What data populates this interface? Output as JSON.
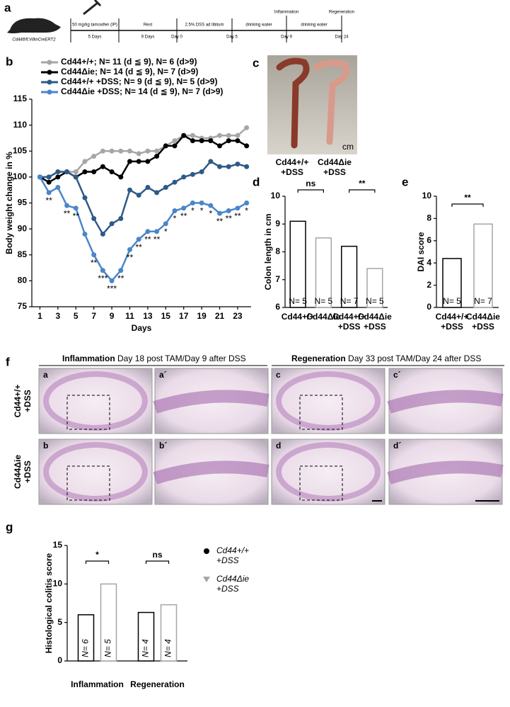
{
  "panel_labels": [
    "a",
    "b",
    "c",
    "d",
    "e",
    "f",
    "g"
  ],
  "timeline": {
    "mouse": "Cd44fl/fl;VillinCreERT2",
    "segments": [
      "50 mg/kg tamoxifen (IP)",
      "Rest",
      "2.5% DSS ad libitum",
      "drinking water",
      "drinking water"
    ],
    "durations": [
      "5 Days",
      "9 Days"
    ],
    "days": [
      "Day 0",
      "Day 5",
      "Day 9",
      "Day 24"
    ],
    "events": [
      "Inflammation",
      "Regeneration"
    ]
  },
  "colon_photo": {
    "scale": "cm",
    "labels": [
      "Cd44+/+\n+DSS",
      "Cd44Δie\n+DSS"
    ]
  },
  "chart_data": [
    {
      "type": "line",
      "x_label": "Days",
      "y_label": "Body weight change in %",
      "x": [
        1,
        2,
        3,
        4,
        5,
        6,
        7,
        8,
        9,
        10,
        11,
        12,
        13,
        14,
        15,
        16,
        17,
        18,
        19,
        20,
        21,
        22,
        23,
        24
      ],
      "xlim": [
        0.1,
        24.5
      ],
      "xticks": [
        1,
        3,
        5,
        7,
        9,
        11,
        13,
        15,
        17,
        19,
        21,
        23
      ],
      "ylim": [
        75,
        115
      ],
      "yticks": [
        75,
        80,
        85,
        90,
        95,
        100,
        105,
        110,
        115
      ],
      "series": [
        {
          "name": "Cd44+/+; N= 11 (d ≦ 9), N= 6 (d>9)",
          "color": "#a6a6a6",
          "values": [
            100,
            100,
            101,
            101,
            101,
            103,
            104,
            105,
            105,
            105,
            105,
            104.5,
            105,
            105,
            106,
            107,
            108,
            108,
            107.5,
            107.5,
            108,
            108,
            108,
            109.5
          ]
        },
        {
          "name": "Cd44Δie; N= 14 (d ≦ 9), N= 7 (d>9)",
          "color": "#000000",
          "values": [
            100,
            99,
            100,
            101,
            100,
            101,
            101,
            102,
            101,
            100,
            103,
            103,
            103,
            104,
            106,
            106,
            108,
            107,
            107,
            107,
            106,
            107,
            107,
            106
          ]
        },
        {
          "name": "Cd44+/+ +DSS; N= 9 (d ≦ 9), N= 5 (d>9)",
          "color": "#2e5a87",
          "values": [
            100,
            100,
            101,
            101,
            100,
            96,
            92,
            89,
            91,
            92,
            97.5,
            96.5,
            98,
            97,
            98,
            99,
            100,
            100.5,
            101,
            103,
            102,
            102,
            102.5,
            102
          ]
        },
        {
          "name": "Cd44Δie +DSS; N= 14 (d ≦ 9), N= 7 (d>9)",
          "color": "#4a86c8",
          "values": [
            100,
            97,
            98,
            94.5,
            94,
            89,
            85,
            82,
            80,
            82,
            86,
            88,
            89.5,
            89.5,
            91,
            93.5,
            94,
            95,
            95,
            94.5,
            93,
            93.5,
            94,
            95
          ]
        }
      ],
      "significance": [
        null,
        "**",
        null,
        "**",
        "**",
        null,
        "**",
        "***",
        "***",
        "**",
        "**",
        "**",
        "**",
        "**",
        "*",
        "*",
        "**",
        "*",
        "*",
        "*",
        "**",
        "**",
        "**",
        "*"
      ]
    },
    {
      "type": "bar",
      "y_label": "Colon length in cm",
      "categories": [
        "Cd44+/+",
        "Cd44Δie",
        "Cd44+/+\n+DSS",
        "Cd44Δie\n+DSS"
      ],
      "values": [
        9.1,
        8.5,
        8.2,
        7.4
      ],
      "colors": [
        "#000000",
        "#a6a6a6",
        "#000000",
        "#a6a6a6"
      ],
      "n_labels": [
        "N= 5",
        "N= 5",
        "N= 7",
        "N= 5"
      ],
      "ylim": [
        6,
        10
      ],
      "yticks": [
        6,
        7,
        8,
        9,
        10
      ],
      "significance": [
        "ns",
        "**"
      ]
    },
    {
      "type": "bar",
      "y_label": "DAI score",
      "categories": [
        "Cd44+/+\n+DSS",
        "Cd44Δie\n+DSS"
      ],
      "values": [
        4.4,
        7.5
      ],
      "colors": [
        "#000000",
        "#a6a6a6"
      ],
      "n_labels": [
        "N= 5",
        "N= 7"
      ],
      "ylim": [
        0,
        10
      ],
      "yticks": [
        0,
        2,
        4,
        6,
        8,
        10
      ],
      "significance": [
        "**"
      ]
    },
    {
      "type": "bar",
      "y_label": "Histological colitis score",
      "categories": [
        "Inflammation",
        "Regeneration"
      ],
      "series": [
        {
          "name": "Cd44+/+\n+DSS",
          "color": "#000000",
          "values": [
            6,
            6.3
          ],
          "n_labels": [
            "N= 6",
            "N= 4"
          ]
        },
        {
          "name": "Cd44Δie\n+DSS",
          "color": "#a6a6a6",
          "values": [
            10,
            7.3
          ],
          "n_labels": [
            "N= 5",
            "N= 4"
          ]
        }
      ],
      "ylim": [
        0,
        15
      ],
      "yticks": [
        0,
        5,
        10,
        15
      ],
      "significance": [
        "*",
        "ns"
      ]
    }
  ],
  "histology": {
    "headers": [
      {
        "title": "Inflammation",
        "detail": "Day 18 post TAM/Day 9 after DSS"
      },
      {
        "title": "Regeneration",
        "detail": "Day 33 post TAM/Day 24 after DSS"
      }
    ],
    "row_labels": [
      "Cd44+/+\n+DSS",
      "Cd44Δie\n+DSS"
    ],
    "tiles": [
      "a",
      "a´",
      "c",
      "c´",
      "b",
      "b´",
      "d",
      "d´"
    ]
  }
}
